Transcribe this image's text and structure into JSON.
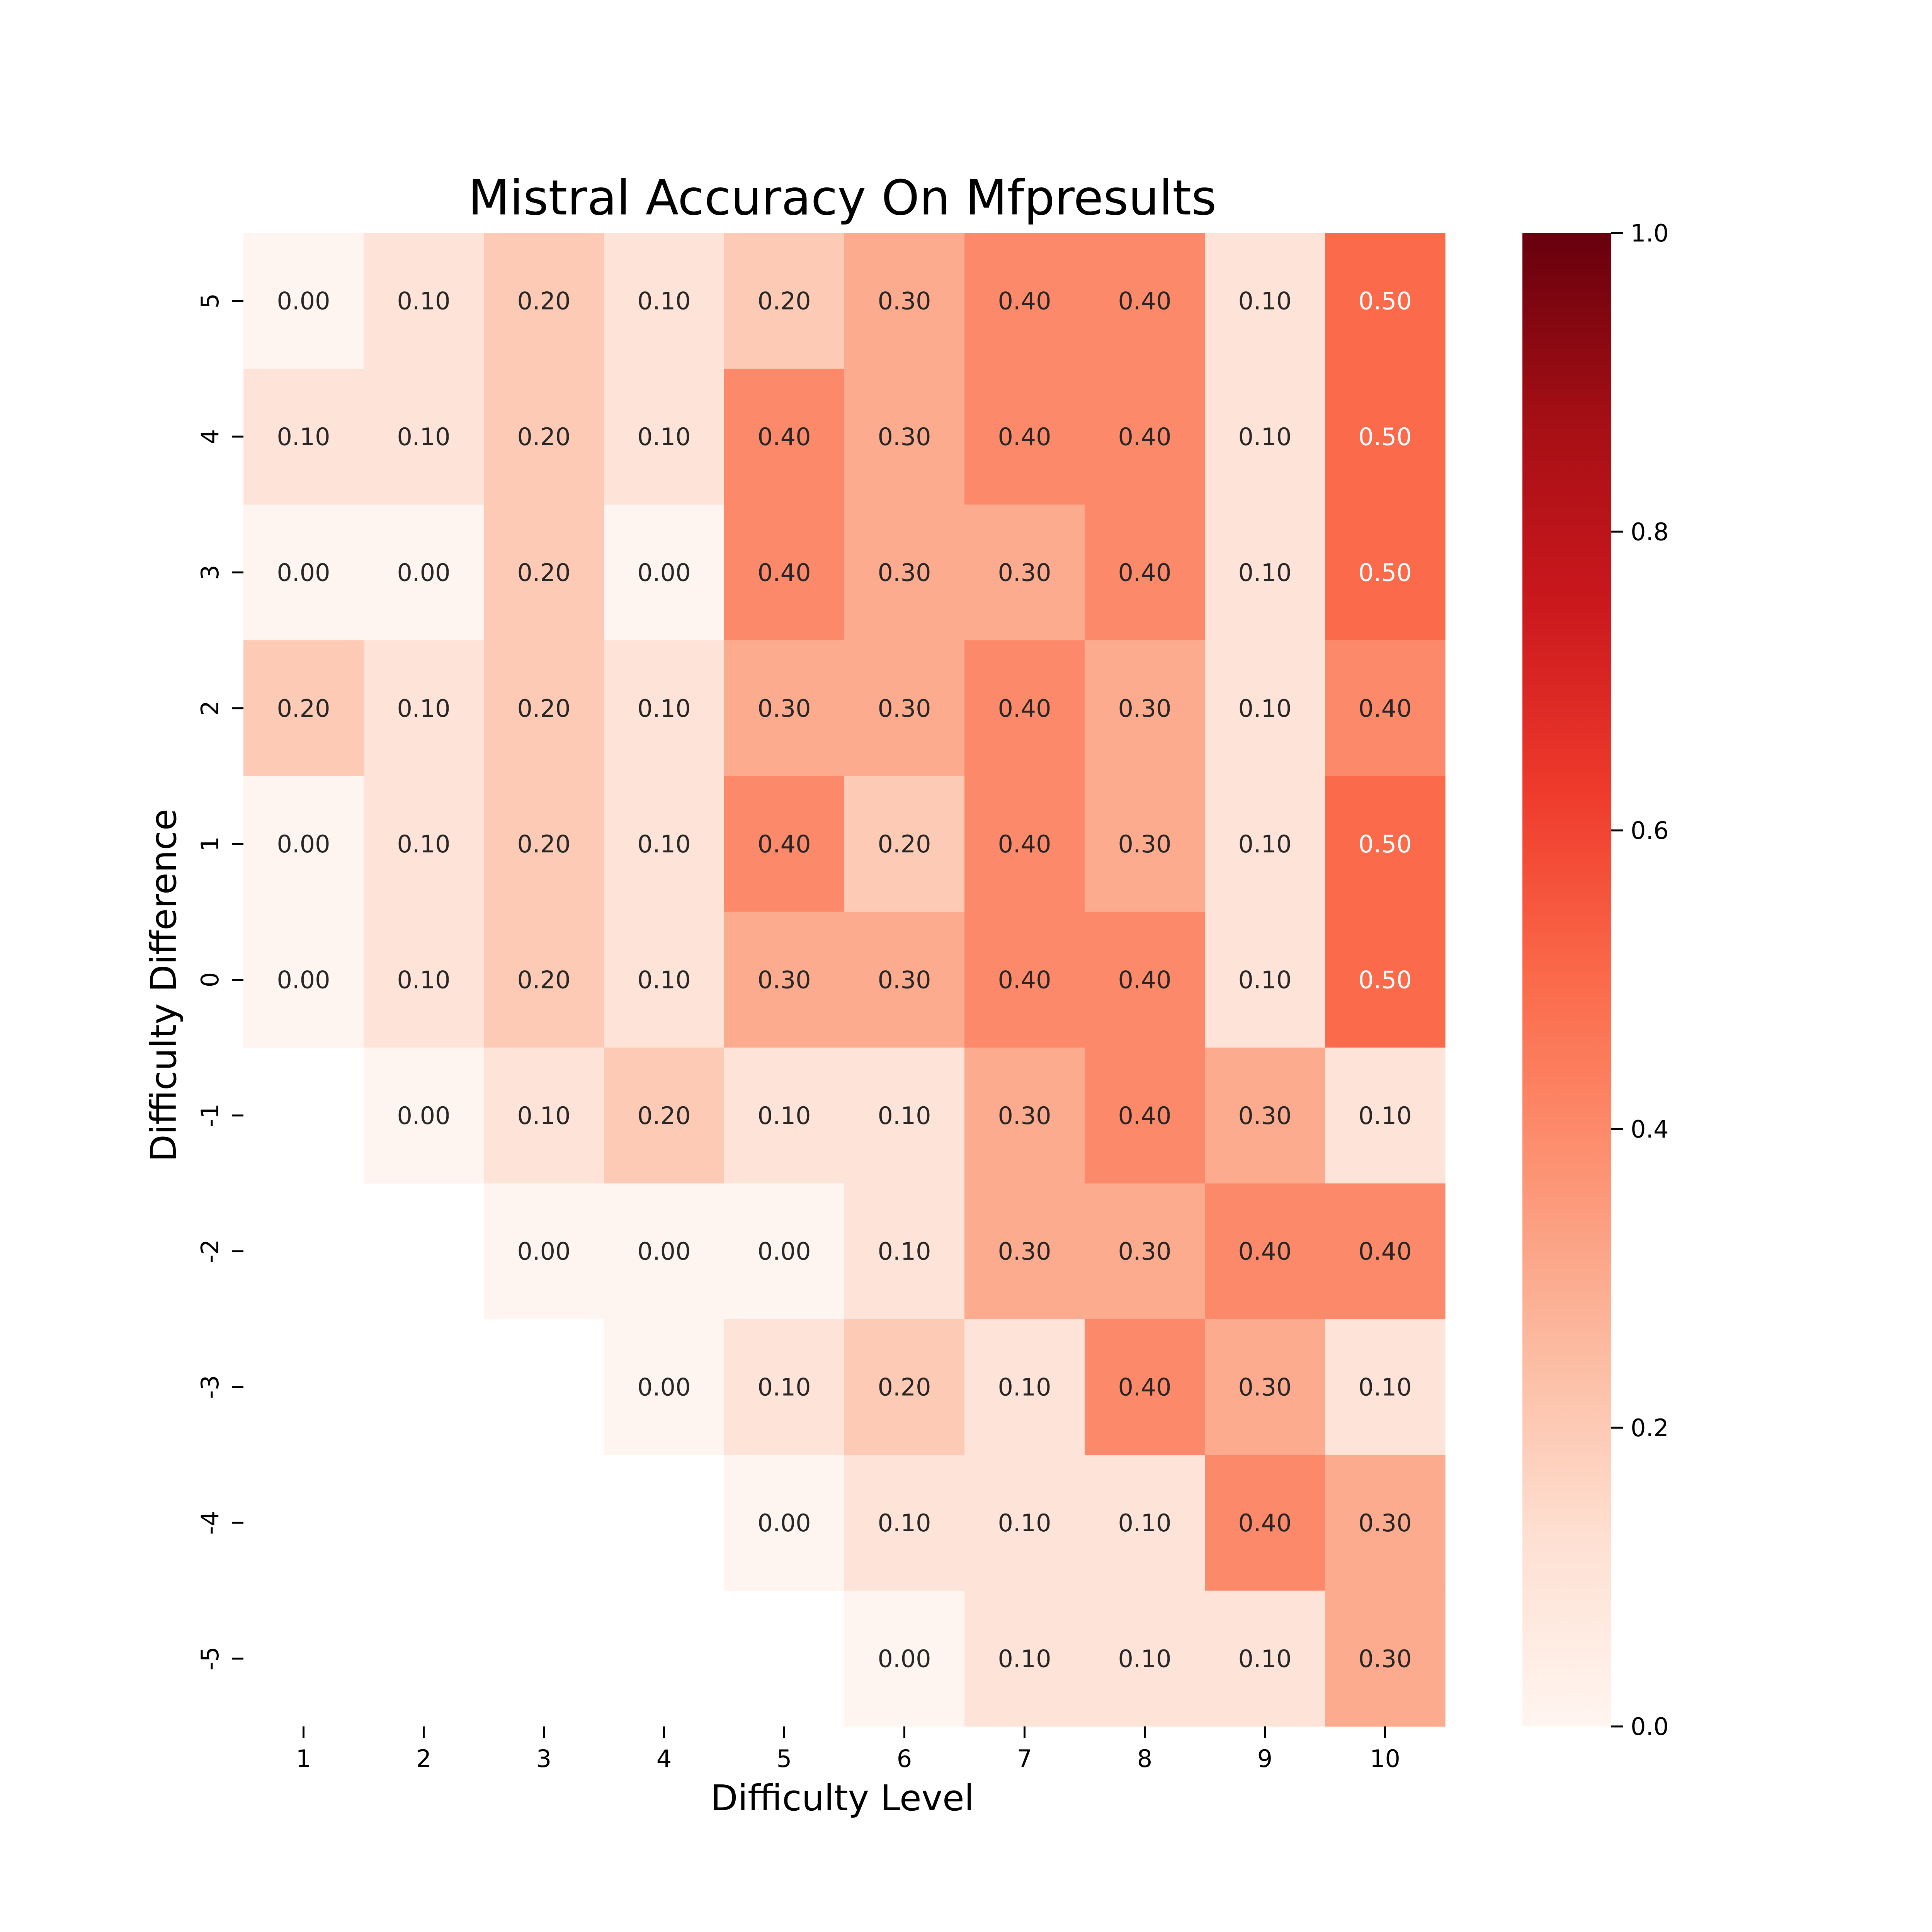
{
  "chart_data": {
    "type": "heatmap",
    "title": "Mistral Accuracy On Mfpresults",
    "xlabel": "Difficulty Level",
    "ylabel": "Difficulty Difference",
    "x_categories": [
      "1",
      "2",
      "3",
      "4",
      "5",
      "6",
      "7",
      "8",
      "9",
      "10"
    ],
    "y_categories": [
      "5",
      "4",
      "3",
      "2",
      "1",
      "0",
      "-1",
      "-2",
      "-3",
      "-4",
      "-5"
    ],
    "values": [
      [
        0.0,
        0.1,
        0.2,
        0.1,
        0.2,
        0.3,
        0.4,
        0.4,
        0.1,
        0.5
      ],
      [
        0.1,
        0.1,
        0.2,
        0.1,
        0.4,
        0.3,
        0.4,
        0.4,
        0.1,
        0.5
      ],
      [
        0.0,
        0.0,
        0.2,
        0.0,
        0.4,
        0.3,
        0.3,
        0.4,
        0.1,
        0.5
      ],
      [
        0.2,
        0.1,
        0.2,
        0.1,
        0.3,
        0.3,
        0.4,
        0.3,
        0.1,
        0.4
      ],
      [
        0.0,
        0.1,
        0.2,
        0.1,
        0.4,
        0.2,
        0.4,
        0.3,
        0.1,
        0.5
      ],
      [
        0.0,
        0.1,
        0.2,
        0.1,
        0.3,
        0.3,
        0.4,
        0.4,
        0.1,
        0.5
      ],
      [
        null,
        0.0,
        0.1,
        0.2,
        0.1,
        0.1,
        0.3,
        0.4,
        0.3,
        0.1
      ],
      [
        null,
        null,
        0.0,
        0.0,
        0.0,
        0.1,
        0.3,
        0.3,
        0.4,
        0.4
      ],
      [
        null,
        null,
        null,
        0.0,
        0.1,
        0.2,
        0.1,
        0.4,
        0.3,
        0.1
      ],
      [
        null,
        null,
        null,
        null,
        0.0,
        0.1,
        0.1,
        0.1,
        0.4,
        0.3
      ],
      [
        null,
        null,
        null,
        null,
        null,
        0.0,
        0.1,
        0.1,
        0.1,
        0.3
      ]
    ],
    "value_format": "0.00",
    "colormap": "Reds",
    "colormap_stops": [
      "#fff5f0",
      "#fee0d2",
      "#fcbba1",
      "#fc9272",
      "#fb6a4a",
      "#ef3b2c",
      "#cb181d",
      "#a50f15",
      "#67000d"
    ],
    "vmin": 0.0,
    "vmax": 1.0,
    "colorbar_ticks": [
      "0.0",
      "0.2",
      "0.4",
      "0.6",
      "0.8",
      "1.0"
    ],
    "grid": false,
    "legend": "colorbar-right"
  }
}
